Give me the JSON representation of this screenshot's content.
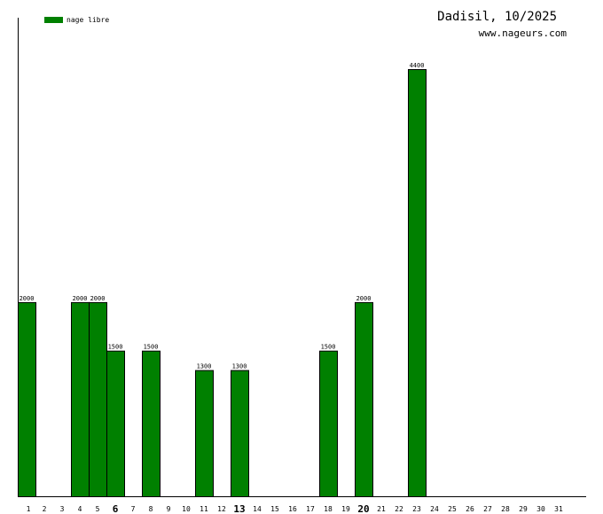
{
  "header": {
    "title": "Dadisil, 10/2025",
    "site": "www.nageurs.com"
  },
  "colors": {
    "bar": "#008000",
    "bar_border": "#000000",
    "axis": "#000000"
  },
  "chart_data": {
    "type": "bar",
    "title": "Dadisil, 10/2025",
    "xlabel": "",
    "ylabel": "",
    "ylim": [
      0,
      4400
    ],
    "grid": false,
    "legend_position": "top-left",
    "categories": [
      "1",
      "2",
      "3",
      "4",
      "5",
      "6",
      "7",
      "8",
      "9",
      "10",
      "11",
      "12",
      "13",
      "14",
      "15",
      "16",
      "17",
      "18",
      "19",
      "20",
      "21",
      "22",
      "23",
      "24",
      "25",
      "26",
      "27",
      "28",
      "29",
      "30",
      "31"
    ],
    "emphasized_categories": [
      "6",
      "13",
      "20"
    ],
    "series": [
      {
        "name": "nage libre",
        "values": [
          2000,
          0,
          0,
          2000,
          2000,
          1500,
          0,
          1500,
          0,
          0,
          1300,
          0,
          1300,
          0,
          0,
          0,
          0,
          1500,
          0,
          2000,
          0,
          0,
          4400,
          0,
          0,
          0,
          0,
          0,
          0,
          0,
          0
        ]
      }
    ]
  }
}
